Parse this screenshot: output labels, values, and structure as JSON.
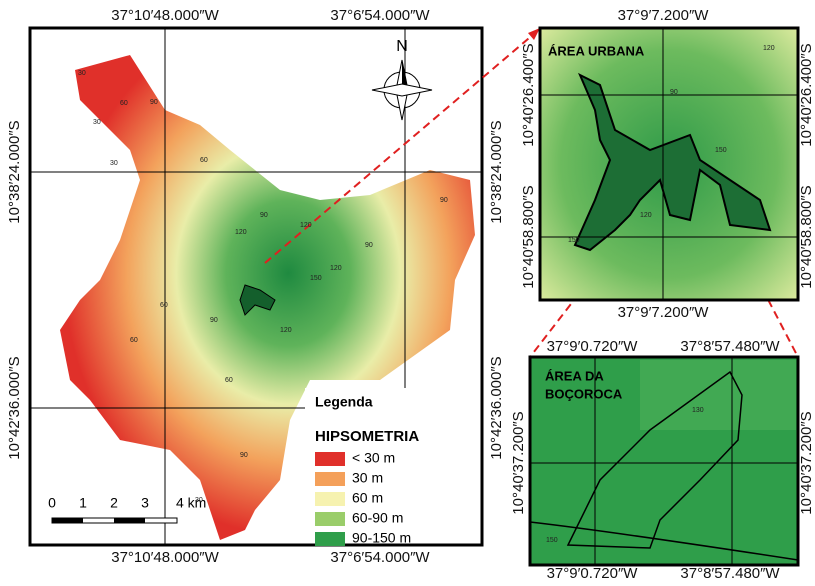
{
  "main_map": {
    "coords": {
      "top": [
        "37°10′48.000″W",
        "37°6′54.000″W"
      ],
      "bottom": [
        "37°10′48.000″W",
        "37°6′54.000″W"
      ],
      "left": [
        "10°38′24.000″S",
        "10°42′36.000″S"
      ],
      "right": [
        "10°38′24.000″S",
        "10°42′36.000″S"
      ]
    },
    "north": "N",
    "contour_labels": [
      "30",
      "30",
      "60",
      "90",
      "30",
      "60",
      "90",
      "120",
      "120",
      "150",
      "120",
      "90",
      "60",
      "60",
      "90",
      "120",
      "90",
      "60",
      "30",
      "90"
    ],
    "scale": {
      "labels": [
        "0",
        "1",
        "2",
        "3",
        "4 km"
      ]
    },
    "legend": {
      "title": "Legenda",
      "subtitle": "HIPSOMETRIA",
      "items": [
        {
          "label": "< 30 m",
          "color": "#e0302a"
        },
        {
          "label": "30 m",
          "color": "#f4a05a"
        },
        {
          "label": "60 m",
          "color": "#f6f2b0"
        },
        {
          "label": "60-90 m",
          "color": "#9acd6a"
        },
        {
          "label": "90-150 m",
          "color": "#2f9e4a"
        }
      ]
    }
  },
  "inset_urban": {
    "title": "ÁREA URBANA",
    "coords": {
      "top": [
        "37°9′7.200″W"
      ],
      "bottom": [
        "37°9′7.200″W"
      ],
      "left": [
        "10°40′26.400″S",
        "10°40′58.800″S"
      ],
      "right": [
        "10°40′26.400″S",
        "10°40′58.800″S"
      ]
    },
    "contour_labels": [
      "120",
      "90",
      "150",
      "120",
      "150"
    ]
  },
  "inset_gully": {
    "title_lines": [
      "ÁREA DA",
      "BOÇOROCA"
    ],
    "coords": {
      "top": [
        "37°9′0.720″W",
        "37°8′57.480″W"
      ],
      "bottom": [
        "37°9′0.720″W",
        "37°8′57.480″W"
      ],
      "left": [
        "10°40′37.200″S"
      ],
      "right": [
        "10°40′37.200″S"
      ]
    },
    "contour_labels": [
      "130",
      "150"
    ]
  }
}
